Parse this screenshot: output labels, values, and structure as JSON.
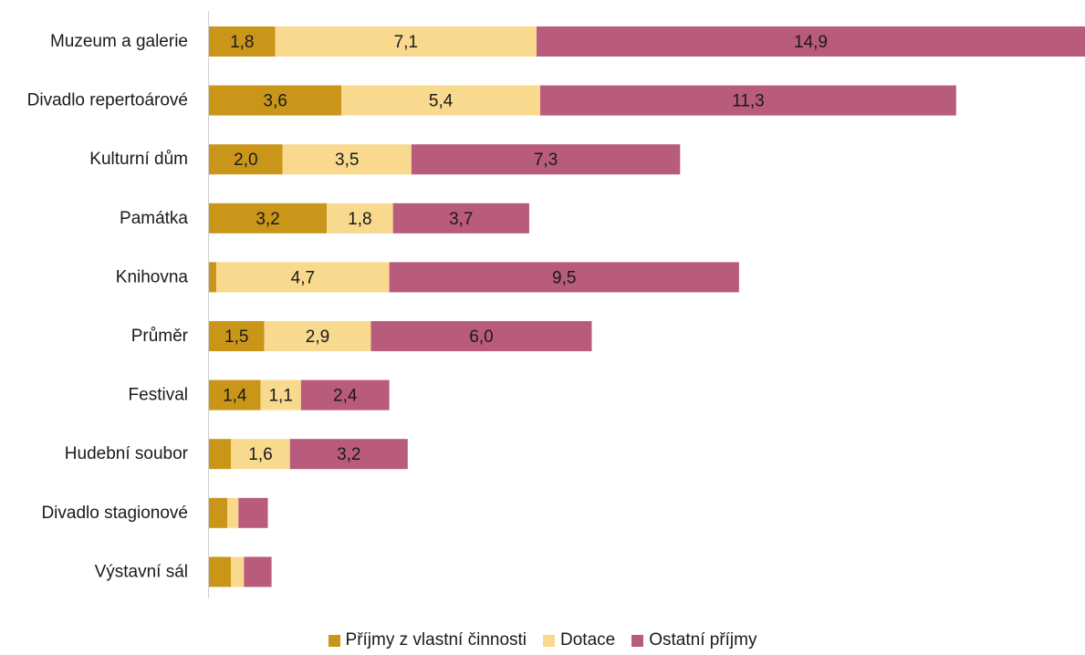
{
  "chart_data": {
    "type": "bar",
    "orientation": "horizontal",
    "stacked": true,
    "categories": [
      "Muzeum a galerie",
      "Divadlo repertoárové",
      "Kulturní dům",
      "Památka",
      "Knihovna",
      "Průměr",
      "Festival",
      "Hudební soubor",
      "Divadlo stagionové",
      "Výstavní sál"
    ],
    "series": [
      {
        "name": "Příjmy z vlastní činnosti",
        "color": "#c9961a",
        "values": [
          1.8,
          3.6,
          2.0,
          3.2,
          0.2,
          1.5,
          1.4,
          0.6,
          0.5,
          0.6
        ],
        "labels": [
          "1,8",
          "3,6",
          "2,0",
          "3,2",
          "",
          "1,5",
          "1,4",
          "",
          "",
          ""
        ]
      },
      {
        "name": "Dotace",
        "color": "#f8d98e",
        "values": [
          7.1,
          5.4,
          3.5,
          1.8,
          4.7,
          2.9,
          1.1,
          1.6,
          0.3,
          0.35
        ],
        "labels": [
          "7,1",
          "5,4",
          "3,5",
          "1,8",
          "4,7",
          "2,9",
          "1,1",
          "1,6",
          "",
          ""
        ]
      },
      {
        "name": "Ostatní příjmy",
        "color": "#b95b7d",
        "values": [
          14.9,
          11.3,
          7.3,
          3.7,
          9.5,
          6.0,
          2.4,
          3.2,
          0.8,
          0.75
        ],
        "labels": [
          "14,9",
          "11,3",
          "7,3",
          "3,7",
          "9,5",
          "6,0",
          "2,4",
          "3,2",
          "",
          ""
        ]
      }
    ],
    "xlim": [
      0,
      23.8
    ],
    "grid": false,
    "legend_position": "bottom"
  }
}
